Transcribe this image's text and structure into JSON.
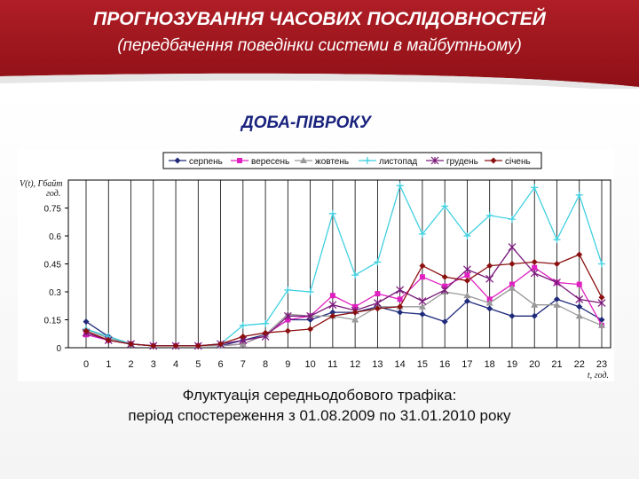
{
  "slide": {
    "title": "ПРОГНОЗУВАННЯ ЧАСОВИХ ПОСЛІДОВНОСТЕЙ",
    "subtitle": "(передбачення поведінки системи в майбутньому)",
    "heading": "ДОБА-ПІВРОКУ",
    "caption_line1": "Флуктуація середньодобового трафіка:",
    "caption_line2": "період спостереження з 01.08.2009 по 31.01.2010 року",
    "colors": {
      "banner": "#a51c24",
      "heading": "#1a237e"
    }
  },
  "chart_data": {
    "type": "line",
    "ylabel_top": "V(t), Гбайт",
    "ylabel_bottom": "год.",
    "xlabel": "t, год.",
    "ylim": [
      0,
      0.9
    ],
    "yticks": [
      "0",
      "0.15",
      "0.3",
      "0.45",
      "0.6",
      "0.75"
    ],
    "ytick_values": [
      0,
      0.15,
      0.3,
      0.45,
      0.6,
      0.75
    ],
    "x": [
      0,
      1,
      2,
      3,
      4,
      5,
      6,
      7,
      8,
      9,
      10,
      11,
      12,
      13,
      14,
      15,
      16,
      17,
      18,
      19,
      20,
      21,
      22,
      23
    ],
    "xticks": [
      "0",
      "1",
      "2",
      "3",
      "4",
      "5",
      "6",
      "7",
      "8",
      "9",
      "10",
      "11",
      "12",
      "13",
      "14",
      "15",
      "16",
      "17",
      "18",
      "19",
      "20",
      "21",
      "22",
      "23"
    ],
    "grid": "vertical",
    "legend_position": "top",
    "series": [
      {
        "name": "серпень",
        "color": "#1f2a7a",
        "marker": "diamond",
        "values": [
          0.14,
          0.06,
          0.02,
          0.01,
          0.01,
          0.01,
          0.01,
          0.04,
          0.07,
          0.15,
          0.15,
          0.19,
          0.19,
          0.22,
          0.19,
          0.18,
          0.14,
          0.25,
          0.21,
          0.17,
          0.17,
          0.26,
          0.22,
          0.15
        ]
      },
      {
        "name": "вересень",
        "color": "#e020c0",
        "marker": "square",
        "values": [
          0.07,
          0.04,
          0.02,
          0.01,
          0.01,
          0.01,
          0.01,
          0.02,
          0.07,
          0.15,
          0.17,
          0.28,
          0.22,
          0.29,
          0.26,
          0.38,
          0.33,
          0.39,
          0.26,
          0.34,
          0.43,
          0.35,
          0.34,
          0.12
        ]
      },
      {
        "name": "жовтень",
        "color": "#999999",
        "marker": "triangle",
        "values": [
          0.1,
          0.05,
          0.02,
          0.01,
          0.01,
          0.01,
          0.01,
          0.02,
          0.07,
          0.18,
          0.17,
          0.17,
          0.15,
          0.22,
          0.22,
          0.22,
          0.3,
          0.28,
          0.24,
          0.32,
          0.23,
          0.23,
          0.17,
          0.12
        ]
      },
      {
        "name": "листопад",
        "color": "#40d0e0",
        "marker": "plus",
        "values": [
          0.1,
          0.06,
          0.02,
          0.01,
          0.01,
          0.01,
          0.02,
          0.12,
          0.13,
          0.31,
          0.3,
          0.72,
          0.39,
          0.46,
          0.87,
          0.61,
          0.76,
          0.6,
          0.71,
          0.69,
          0.86,
          0.58,
          0.82,
          0.45
        ]
      },
      {
        "name": "грудень",
        "color": "#7a1a7a",
        "marker": "star",
        "values": [
          0.08,
          0.04,
          0.02,
          0.01,
          0.01,
          0.01,
          0.02,
          0.04,
          0.06,
          0.17,
          0.17,
          0.23,
          0.2,
          0.24,
          0.31,
          0.25,
          0.31,
          0.42,
          0.37,
          0.54,
          0.4,
          0.35,
          0.26,
          0.24
        ]
      },
      {
        "name": "січень",
        "color": "#8b1010",
        "marker": "diamond",
        "values": [
          0.09,
          0.04,
          0.02,
          0.01,
          0.01,
          0.01,
          0.02,
          0.06,
          0.08,
          0.09,
          0.1,
          0.17,
          0.19,
          0.21,
          0.22,
          0.44,
          0.38,
          0.36,
          0.44,
          0.45,
          0.46,
          0.45,
          0.5,
          0.27
        ]
      }
    ]
  }
}
